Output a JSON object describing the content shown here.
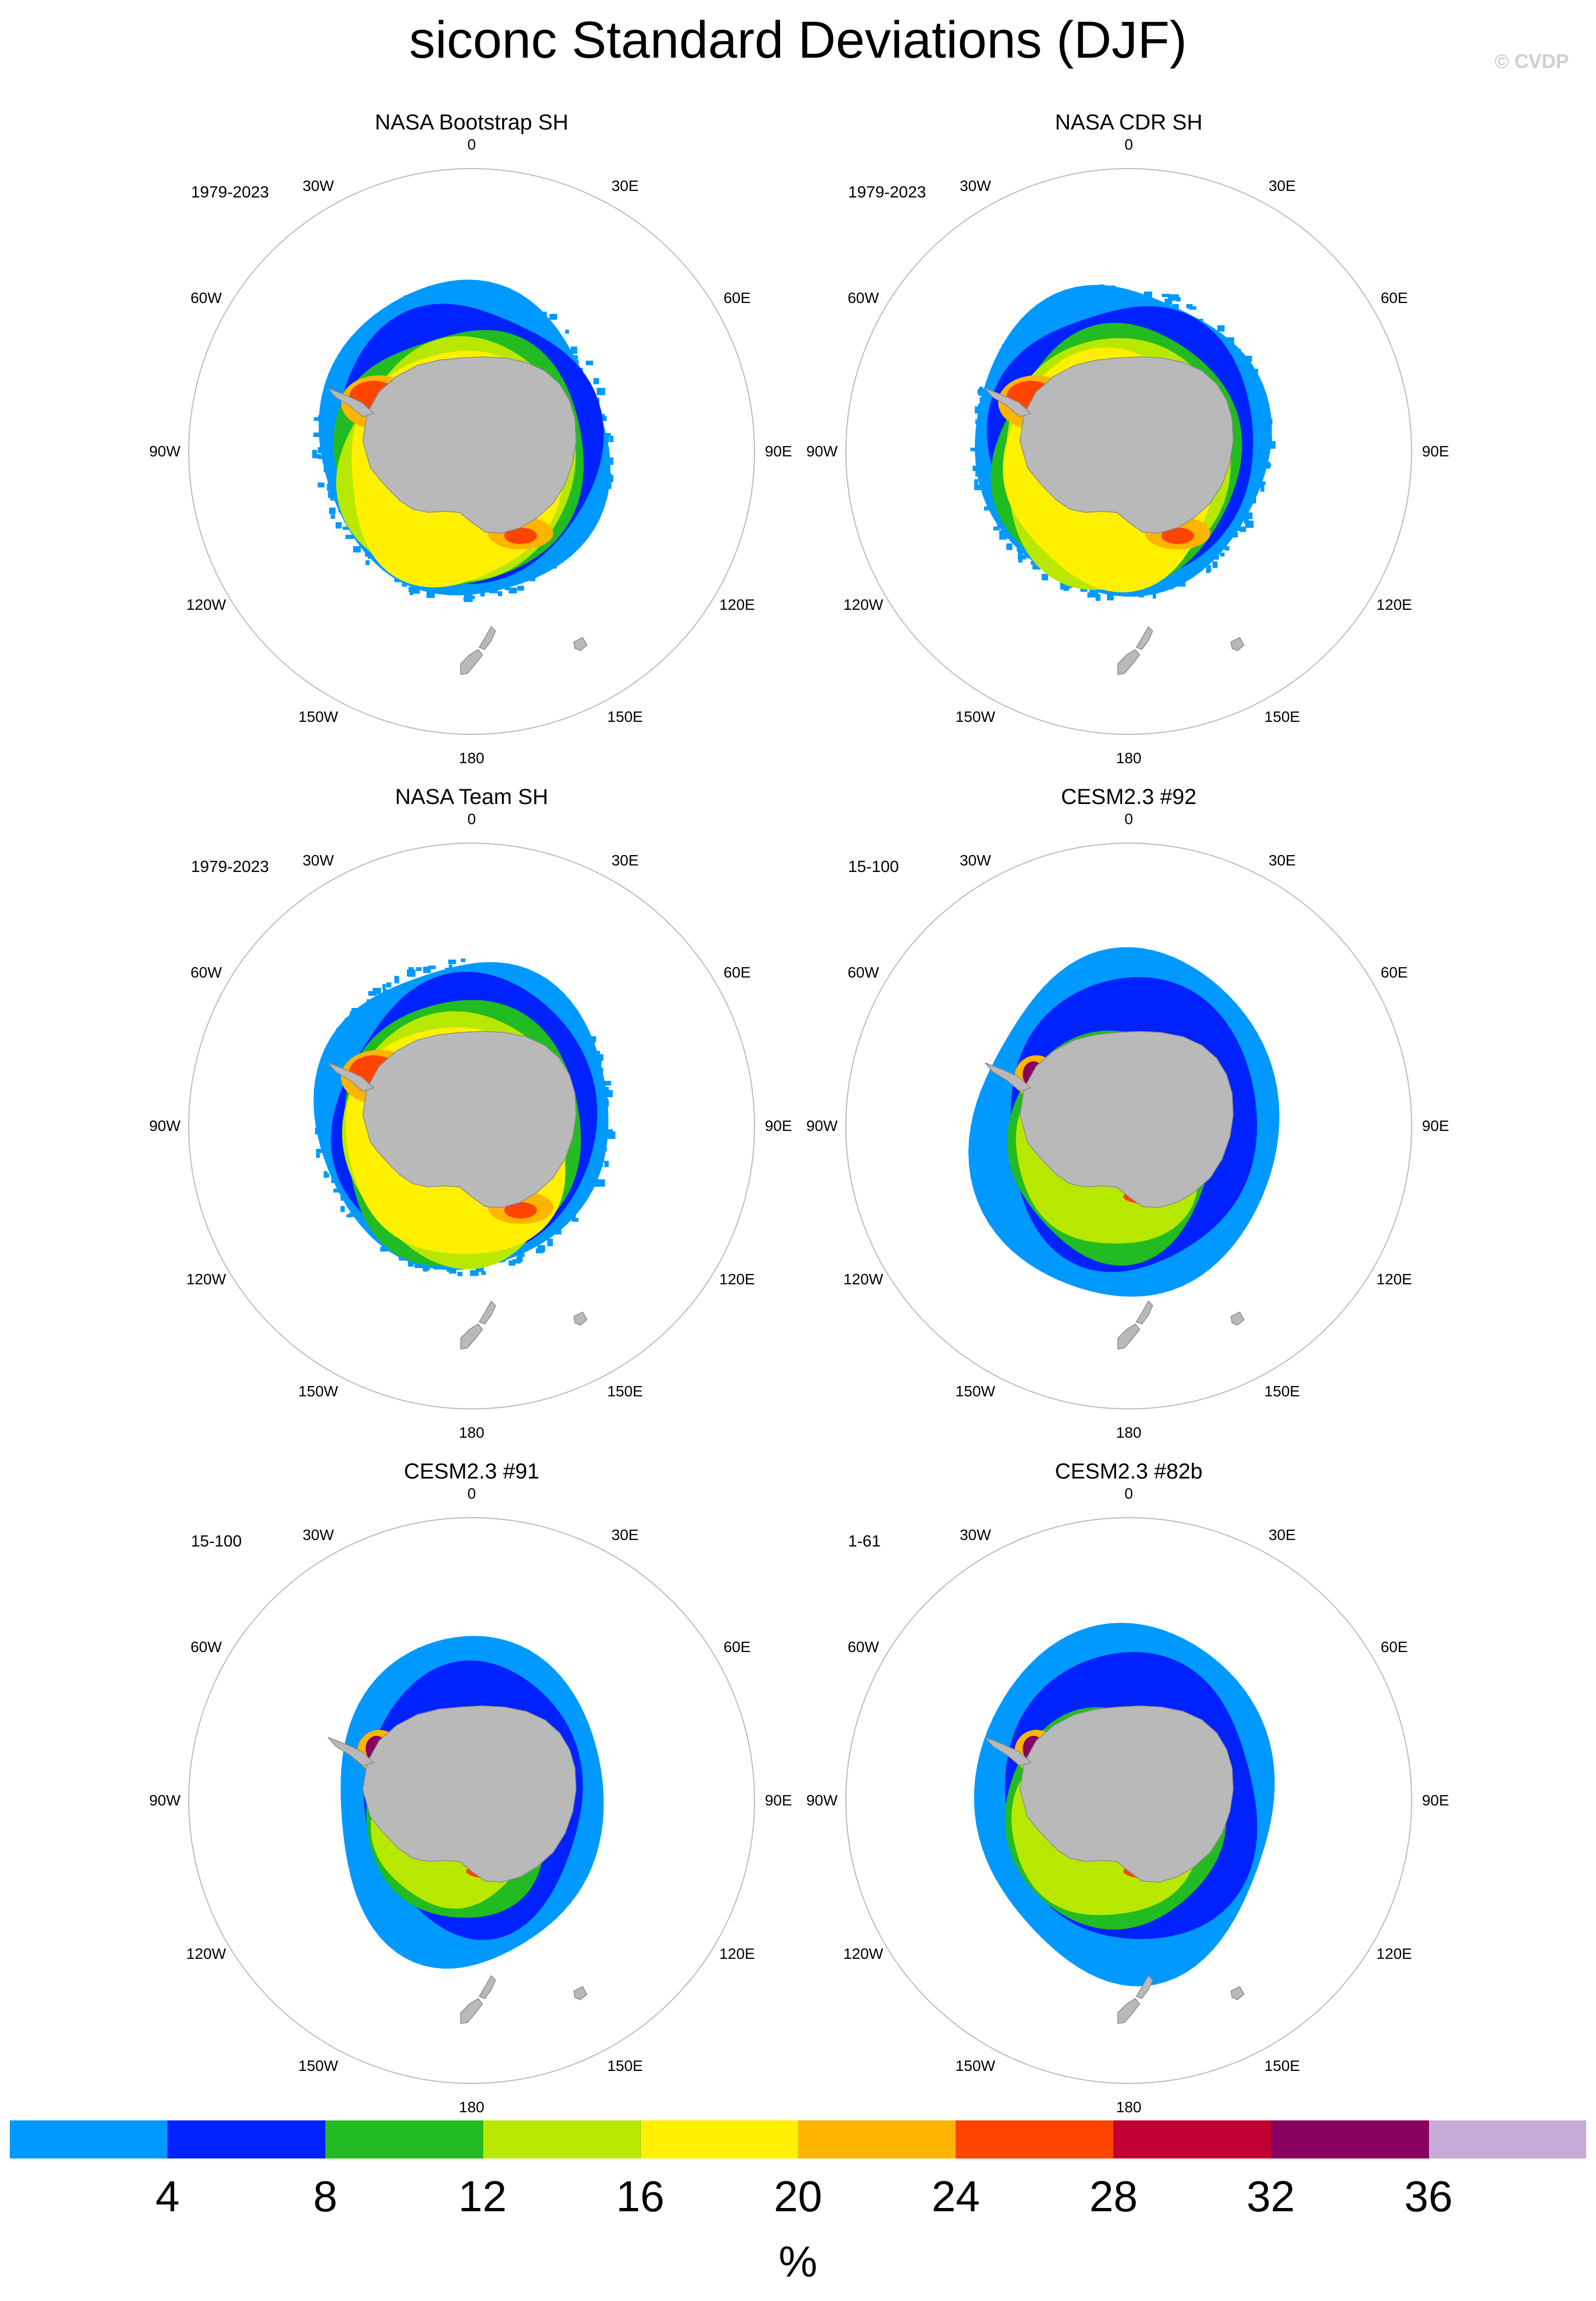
{
  "title": "siconc Standard Deviations (DJF)",
  "credit": "© CVDP",
  "lon_labels": [
    "0",
    "30E",
    "60E",
    "90E",
    "120E",
    "150E",
    "180",
    "150W",
    "120W",
    "90W",
    "60W",
    "30W"
  ],
  "panels": [
    {
      "title": "NASA Bootstrap SH",
      "period": "1979-2023",
      "style": "obs"
    },
    {
      "title": "NASA CDR SH",
      "period": "1979-2023",
      "style": "obs"
    },
    {
      "title": "NASA Team SH",
      "period": "1979-2023",
      "style": "obs"
    },
    {
      "title": "CESM2.3 #92",
      "period": "15-100",
      "style": "model"
    },
    {
      "title": "CESM2.3 #91",
      "period": "15-100",
      "style": "model"
    },
    {
      "title": "CESM2.3 #82b",
      "period": "1-61",
      "style": "model"
    }
  ],
  "colorbar": {
    "colors": [
      "#0099FF",
      "#0022FF",
      "#22BB22",
      "#B8E800",
      "#FFF000",
      "#FFB400",
      "#FF4400",
      "#C00030",
      "#880060",
      "#C8AAD8"
    ],
    "labels": [
      "4",
      "8",
      "12",
      "16",
      "20",
      "24",
      "28",
      "32",
      "36"
    ],
    "units": "%"
  },
  "colors": {
    "land": "#B9B9B9",
    "coast": "#8A8A8A",
    "circle": "#BBBBBB"
  }
}
